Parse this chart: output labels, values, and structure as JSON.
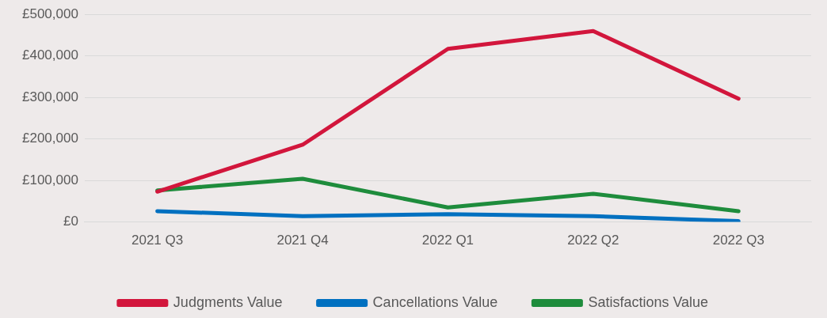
{
  "chart_data": {
    "type": "line",
    "categories": [
      "2021 Q3",
      "2021 Q4",
      "2022 Q1",
      "2022 Q2",
      "2022 Q3"
    ],
    "series": [
      {
        "name": "Judgments Value",
        "color": "#d2163c",
        "values": [
          73000,
          186000,
          417000,
          460000,
          297000
        ]
      },
      {
        "name": "Cancellations Value",
        "color": "#0070c0",
        "values": [
          26000,
          14000,
          19000,
          14000,
          2000
        ]
      },
      {
        "name": "Satisfactions Value",
        "color": "#1e8c3c",
        "values": [
          76000,
          104000,
          35000,
          68000,
          26000
        ]
      }
    ],
    "ylim": [
      0,
      500000
    ],
    "yticks": [
      {
        "value": 0,
        "label": "£0"
      },
      {
        "value": 100000,
        "label": "£100,000"
      },
      {
        "value": 200000,
        "label": "£200,000"
      },
      {
        "value": 300000,
        "label": "£300,000"
      },
      {
        "value": 400000,
        "label": "£400,000"
      },
      {
        "value": 500000,
        "label": "£500,000"
      }
    ],
    "grid": "y",
    "legend": "bottom",
    "marker": "none",
    "line_style": "solid"
  }
}
